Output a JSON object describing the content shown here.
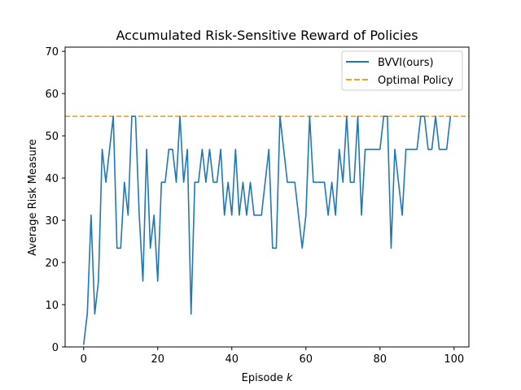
{
  "chart_data": {
    "type": "line",
    "title": "Accumulated Risk-Sensitive Reward of Policies",
    "xlabel_prefix": "Episode ",
    "xlabel_var": "k",
    "ylabel": "Average Risk Measure",
    "xlim": [
      -5,
      104
    ],
    "ylim": [
      0,
      71
    ],
    "xticks": [
      0,
      20,
      40,
      60,
      80,
      100
    ],
    "yticks": [
      0,
      10,
      20,
      30,
      40,
      50,
      60,
      70
    ],
    "grid": false,
    "legend_position": "top-right",
    "series": [
      {
        "name": "BVVI(ours)",
        "color": "#1f77b4",
        "style": "solid",
        "x": [
          0,
          1,
          2,
          3,
          4,
          5,
          6,
          7,
          8,
          9,
          10,
          11,
          12,
          13,
          14,
          15,
          16,
          17,
          18,
          19,
          20,
          21,
          22,
          23,
          24,
          25,
          26,
          27,
          28,
          29,
          30,
          31,
          32,
          33,
          34,
          35,
          36,
          37,
          38,
          39,
          40,
          41,
          42,
          43,
          44,
          45,
          46,
          47,
          48,
          49,
          50,
          51,
          52,
          53,
          54,
          55,
          56,
          57,
          58,
          59,
          60,
          61,
          62,
          63,
          64,
          65,
          66,
          67,
          68,
          69,
          70,
          71,
          72,
          73,
          74,
          75,
          76,
          77,
          78,
          79,
          80,
          81,
          82,
          83,
          84,
          85,
          86,
          87,
          88,
          89,
          90,
          91,
          92,
          93,
          94,
          95,
          96,
          97,
          98,
          99
        ],
        "y": [
          0.5,
          8,
          31.2,
          7.8,
          15.6,
          46.8,
          39,
          46.8,
          54.6,
          23.4,
          23.4,
          39,
          31.2,
          54.6,
          54.6,
          31.2,
          15.6,
          46.8,
          23.4,
          31.2,
          15.6,
          39,
          39,
          46.8,
          46.8,
          39,
          54.6,
          39,
          46.8,
          7.8,
          39,
          39,
          46.8,
          39,
          46.8,
          39,
          39,
          46.8,
          31.2,
          39,
          31.2,
          46.8,
          31.2,
          39,
          31.2,
          39,
          31.2,
          31.2,
          31.2,
          39,
          46.8,
          23.4,
          23.4,
          54.6,
          46.8,
          39,
          39,
          39,
          31.2,
          23.4,
          31.2,
          54.6,
          39,
          39,
          39,
          39,
          31.2,
          39,
          31.2,
          46.8,
          39,
          54.6,
          39,
          39,
          54.6,
          31.2,
          46.8,
          46.8,
          46.8,
          46.8,
          46.8,
          54.6,
          54.6,
          23.4,
          46.8,
          39,
          31.2,
          46.8,
          46.8,
          46.8,
          46.8,
          54.6,
          54.6,
          46.8,
          46.8,
          54.6,
          46.8,
          46.8,
          46.8,
          54.6
        ]
      },
      {
        "name": "Optimal Policy",
        "color": "#ff9f0e",
        "style": "dashed",
        "hline": 54.6
      }
    ]
  }
}
